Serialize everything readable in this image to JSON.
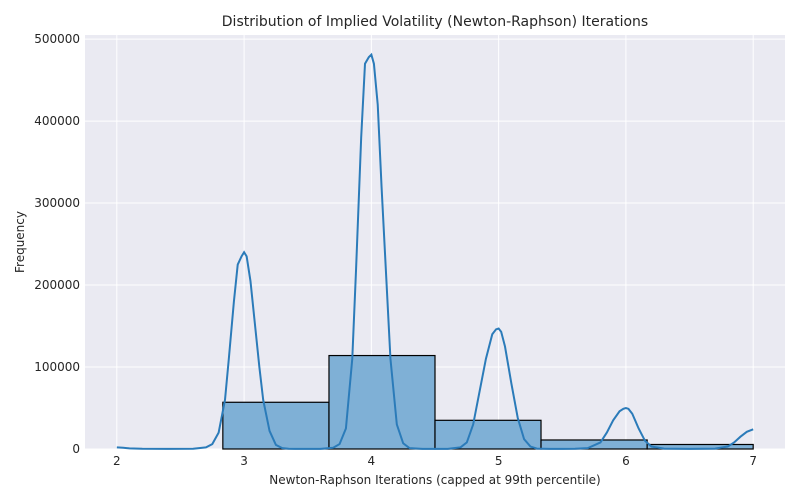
{
  "chart_data": {
    "type": "bar",
    "title": "Distribution of Implied Volatility (Newton-Raphson) Iterations",
    "xlabel": "Newton-Raphson Iterations (capped at 99th percentile)",
    "ylabel": "Frequency",
    "xlim": [
      1.75,
      7.25
    ],
    "ylim": [
      0,
      505000
    ],
    "grid": true,
    "x_ticks": [
      2,
      3,
      4,
      5,
      6,
      7
    ],
    "y_ticks": [
      0,
      100000,
      200000,
      300000,
      400000,
      500000
    ],
    "histogram": {
      "bin_edges": [
        2.0,
        2.833,
        3.667,
        4.5,
        5.333,
        6.167,
        7.0
      ],
      "values": [
        0,
        57000,
        114000,
        35000,
        11000,
        5500
      ]
    },
    "kde": {
      "x": [
        2.0,
        2.05,
        2.1,
        2.2,
        2.4,
        2.6,
        2.7,
        2.75,
        2.8,
        2.85,
        2.88,
        2.92,
        2.95,
        2.98,
        3.0,
        3.02,
        3.05,
        3.08,
        3.12,
        3.15,
        3.2,
        3.25,
        3.3,
        3.35,
        3.4,
        3.5,
        3.6,
        3.7,
        3.75,
        3.8,
        3.85,
        3.88,
        3.92,
        3.95,
        3.98,
        4.0,
        4.02,
        4.05,
        4.08,
        4.12,
        4.15,
        4.2,
        4.25,
        4.3,
        4.4,
        4.5,
        4.6,
        4.7,
        4.75,
        4.8,
        4.85,
        4.9,
        4.95,
        4.98,
        5.0,
        5.02,
        5.05,
        5.1,
        5.15,
        5.2,
        5.25,
        5.3,
        5.4,
        5.5,
        5.6,
        5.7,
        5.8,
        5.85,
        5.9,
        5.95,
        5.98,
        6.0,
        6.02,
        6.05,
        6.1,
        6.15,
        6.2,
        6.3,
        6.5,
        6.7,
        6.8,
        6.85,
        6.9,
        6.95,
        7.0
      ],
      "y": [
        2000,
        1500,
        800,
        300,
        100,
        300,
        2000,
        6000,
        20000,
        60000,
        110000,
        180000,
        225000,
        235000,
        240000,
        235000,
        205000,
        160000,
        100000,
        60000,
        22000,
        5000,
        1000,
        300,
        200,
        100,
        200,
        1500,
        6000,
        25000,
        110000,
        220000,
        380000,
        470000,
        478000,
        481000,
        470000,
        420000,
        320000,
        200000,
        110000,
        30000,
        7000,
        1000,
        200,
        100,
        200,
        2000,
        8000,
        30000,
        70000,
        110000,
        140000,
        146000,
        147000,
        143000,
        125000,
        80000,
        38000,
        12000,
        3000,
        500,
        100,
        100,
        300,
        1000,
        8000,
        20000,
        35000,
        46000,
        49000,
        50000,
        49000,
        43000,
        25000,
        10000,
        3000,
        500,
        100,
        500,
        3000,
        8000,
        15000,
        21000,
        24000
      ]
    },
    "colors": {
      "bar_fill": "#7fb0d6",
      "kde_line": "#2b7bb9",
      "background": "#eaeaf2"
    }
  }
}
